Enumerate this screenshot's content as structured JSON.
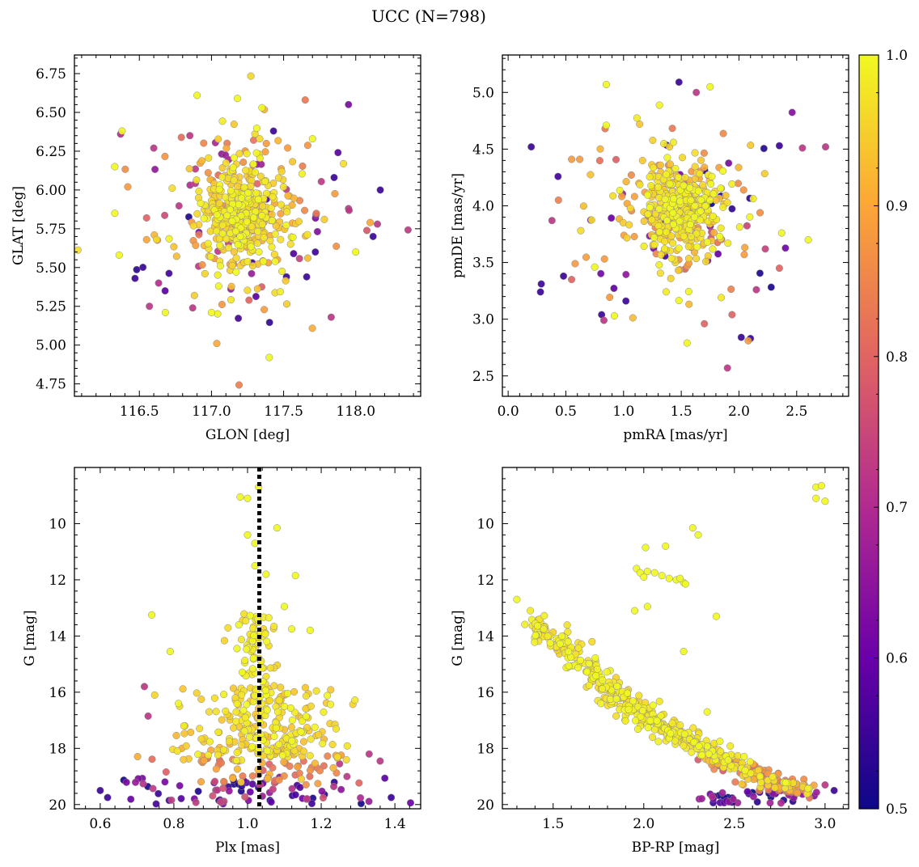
{
  "figure": {
    "title": "UCC (N=798)"
  },
  "colorbar": {
    "range": [
      0.5,
      1.0
    ],
    "ticks": [
      0.5,
      0.6,
      0.7,
      0.8,
      0.9,
      1.0
    ],
    "tick_labels": [
      "0.5",
      "0.6",
      "0.7",
      "0.8",
      "0.9",
      "1.0"
    ],
    "colormap": [
      "#0d0887",
      "#6a00a8",
      "#b12a90",
      "#e16462",
      "#fca636",
      "#f0f921"
    ]
  },
  "chart_data": [
    {
      "id": "sky",
      "type": "scatter",
      "xlabel": "GLON [deg]",
      "ylabel": "GLAT [deg]",
      "xlim": [
        116.05,
        118.45
      ],
      "ylim": [
        4.67,
        6.87
      ],
      "xticks": [
        116.5,
        117.0,
        117.5,
        118.0
      ],
      "xtick_labels": [
        "116.5",
        "117.0",
        "117.5",
        "118.0"
      ],
      "yticks": [
        4.75,
        5.0,
        5.25,
        5.5,
        5.75,
        6.0,
        6.25,
        6.5,
        6.75
      ],
      "ytick_labels": [
        "4.75",
        "5.00",
        "5.25",
        "5.50",
        "5.75",
        "6.00",
        "6.25",
        "6.50",
        "6.75"
      ],
      "inverted_y": false,
      "clusters": [
        {
          "cx": 117.18,
          "cy": 5.85,
          "sx": 0.13,
          "sy": 0.14,
          "n": 330,
          "c": [
            0.93,
            1.0
          ]
        },
        {
          "cx": 117.2,
          "cy": 5.85,
          "sx": 0.28,
          "sy": 0.28,
          "n": 170,
          "c": [
            0.85,
            1.0
          ]
        },
        {
          "cx": 117.2,
          "cy": 5.85,
          "sx": 0.42,
          "sy": 0.38,
          "n": 60,
          "c": [
            0.5,
            0.85
          ]
        }
      ],
      "points": [
        [
          116.9,
          6.61,
          1.0
        ],
        [
          117.18,
          6.59,
          1.0
        ],
        [
          117.35,
          6.53,
          1.0
        ],
        [
          117.65,
          6.58,
          0.83
        ],
        [
          116.37,
          6.36,
          0.7
        ],
        [
          116.38,
          6.38,
          1.0
        ],
        [
          117.43,
          6.38,
          0.55
        ],
        [
          116.33,
          6.15,
          1.0
        ],
        [
          118.17,
          6.0,
          0.55
        ],
        [
          116.42,
          6.02,
          0.88
        ],
        [
          116.33,
          5.85,
          1.0
        ],
        [
          116.36,
          5.58,
          1.0
        ],
        [
          116.47,
          5.43,
          0.55
        ],
        [
          116.57,
          5.25,
          0.72
        ],
        [
          116.68,
          5.21,
          1.0
        ],
        [
          116.87,
          5.24,
          0.72
        ],
        [
          117.0,
          5.21,
          1.0
        ],
        [
          117.4,
          4.92,
          1.0
        ],
        [
          117.83,
          5.18,
          0.72
        ],
        [
          117.26,
          5.29,
          0.8
        ],
        [
          117.72,
          5.6,
          0.55
        ],
        [
          118.12,
          5.7,
          0.55
        ],
        [
          118.15,
          5.78,
          0.72
        ],
        [
          118.1,
          5.79,
          0.9
        ],
        [
          117.95,
          5.88,
          0.72
        ],
        [
          118.0,
          5.6,
          1.0
        ],
        [
          117.85,
          6.08,
          0.55
        ],
        [
          117.7,
          6.33,
          1.0
        ],
        [
          116.6,
          6.27,
          0.72
        ],
        [
          116.55,
          5.82,
          0.8
        ],
        [
          116.55,
          5.68,
          0.9
        ],
        [
          117.66,
          5.44,
          0.55
        ],
        [
          117.52,
          5.44,
          0.55
        ],
        [
          116.85,
          6.35,
          0.72
        ],
        [
          117.05,
          5.38,
          1.0
        ]
      ]
    },
    {
      "id": "pm",
      "type": "scatter",
      "xlabel": "pmRA [mas/yr]",
      "ylabel": "pmDE [mas/yr]",
      "xlim": [
        -0.05,
        2.95
      ],
      "ylim": [
        2.32,
        5.33
      ],
      "xticks": [
        0.0,
        0.5,
        1.0,
        1.5,
        2.0,
        2.5
      ],
      "xtick_labels": [
        "0.0",
        "0.5",
        "1.0",
        "1.5",
        "2.0",
        "2.5"
      ],
      "yticks": [
        2.5,
        3.0,
        3.5,
        4.0,
        4.5,
        5.0
      ],
      "ytick_labels": [
        "2.5",
        "3.0",
        "3.5",
        "4.0",
        "4.5",
        "5.0"
      ],
      "inverted_y": false,
      "clusters": [
        {
          "cx": 1.5,
          "cy": 3.98,
          "sx": 0.16,
          "sy": 0.17,
          "n": 340,
          "c": [
            0.93,
            1.0
          ]
        },
        {
          "cx": 1.5,
          "cy": 3.98,
          "sx": 0.33,
          "sy": 0.33,
          "n": 150,
          "c": [
            0.85,
            1.0
          ]
        },
        {
          "cx": 1.5,
          "cy": 3.95,
          "sx": 0.5,
          "sy": 0.45,
          "n": 50,
          "c": [
            0.5,
            0.85
          ]
        }
      ],
      "points": [
        [
          0.85,
          5.07,
          1.0
        ],
        [
          1.48,
          5.09,
          0.55
        ],
        [
          1.63,
          5.0,
          0.72
        ],
        [
          1.75,
          5.05,
          1.0
        ],
        [
          0.2,
          4.52,
          0.55
        ],
        [
          0.55,
          4.41,
          0.88
        ],
        [
          0.62,
          4.41,
          0.88
        ],
        [
          0.28,
          3.24,
          0.55
        ],
        [
          0.38,
          3.87,
          0.72
        ],
        [
          0.48,
          3.38,
          0.55
        ],
        [
          0.58,
          3.49,
          0.88
        ],
        [
          0.55,
          3.35,
          0.8
        ],
        [
          0.81,
          3.04,
          0.55
        ],
        [
          0.83,
          2.99,
          0.72
        ],
        [
          0.92,
          3.03,
          1.0
        ],
        [
          1.55,
          2.79,
          1.0
        ],
        [
          1.7,
          2.96,
          0.8
        ],
        [
          1.9,
          2.57,
          0.72
        ],
        [
          1.94,
          3.04,
          0.8
        ],
        [
          2.02,
          2.84,
          0.55
        ],
        [
          2.08,
          2.81,
          0.88
        ],
        [
          2.1,
          2.83,
          0.55
        ],
        [
          2.75,
          4.52,
          0.72
        ],
        [
          2.55,
          4.51,
          0.72
        ],
        [
          2.35,
          4.53,
          0.55
        ],
        [
          2.6,
          3.7,
          1.0
        ],
        [
          2.37,
          3.76,
          1.0
        ],
        [
          2.35,
          3.45,
          0.8
        ],
        [
          2.15,
          3.26,
          0.72
        ],
        [
          1.02,
          3.16,
          0.55
        ],
        [
          0.75,
          3.46,
          1.0
        ],
        [
          0.85,
          4.71,
          1.0
        ]
      ]
    },
    {
      "id": "plx",
      "type": "scatter",
      "xlabel": "Plx [mas]",
      "ylabel": "G [mag]",
      "xlim": [
        0.53,
        1.47
      ],
      "ylim": [
        20.15,
        8.0
      ],
      "xticks": [
        0.6,
        0.8,
        1.0,
        1.2,
        1.4
      ],
      "xtick_labels": [
        "0.6",
        "0.8",
        "1.0",
        "1.2",
        "1.4"
      ],
      "yticks": [
        10,
        12,
        14,
        16,
        18,
        20
      ],
      "ytick_labels": [
        "10",
        "12",
        "14",
        "16",
        "18",
        "20"
      ],
      "inverted_y": true,
      "vline": {
        "x": 1.032,
        "style": "dotted",
        "color": "#000000"
      },
      "points": [
        [
          0.98,
          9.05,
          1.0
        ],
        [
          1.0,
          9.1,
          1.0
        ],
        [
          1.03,
          8.7,
          1.0
        ],
        [
          1.0,
          10.4,
          1.0
        ],
        [
          1.02,
          10.7,
          1.0
        ],
        [
          1.08,
          10.15,
          1.0
        ],
        [
          1.02,
          11.5,
          1.0
        ],
        [
          1.05,
          11.8,
          1.0
        ],
        [
          1.13,
          11.85,
          1.0
        ],
        [
          0.74,
          13.25,
          1.0
        ],
        [
          0.79,
          14.55,
          1.0
        ],
        [
          0.72,
          15.8,
          0.72
        ],
        [
          0.73,
          16.85,
          0.72
        ],
        [
          1.1,
          12.95,
          1.0
        ],
        [
          1.12,
          13.75,
          1.0
        ],
        [
          1.17,
          13.8,
          1.0
        ],
        [
          0.6,
          19.5,
          0.55
        ],
        [
          0.62,
          19.75,
          0.55
        ],
        [
          1.39,
          19.75,
          0.55
        ],
        [
          1.33,
          18.2,
          0.72
        ],
        [
          1.36,
          18.45,
          0.72
        ],
        [
          1.25,
          18.55,
          0.72
        ],
        [
          1.27,
          19.0,
          0.72
        ]
      ],
      "bands": [
        {
          "x0": 0.97,
          "x1": 1.07,
          "y0": 13.2,
          "y1": 16.0,
          "n": 70,
          "c": [
            0.95,
            1.0
          ]
        },
        {
          "x0": 0.88,
          "x1": 1.2,
          "y0": 15.8,
          "y1": 18.3,
          "n": 200,
          "c": [
            0.93,
            1.0
          ]
        },
        {
          "x0": 0.8,
          "x1": 1.25,
          "y0": 17.2,
          "y1": 18.5,
          "n": 50,
          "c": [
            0.9,
            1.0
          ]
        },
        {
          "x0": 0.77,
          "x1": 1.32,
          "y0": 18.2,
          "y1": 19.3,
          "n": 60,
          "c": [
            0.78,
            0.95
          ]
        },
        {
          "x0": 0.68,
          "x1": 1.38,
          "y0": 19.0,
          "y1": 20.0,
          "n": 80,
          "c": [
            0.5,
            0.78
          ]
        }
      ]
    },
    {
      "id": "cmd",
      "type": "scatter",
      "xlabel": "BP-RP [mag]",
      "ylabel": "G [mag]",
      "xlim": [
        1.22,
        3.13
      ],
      "ylim": [
        20.15,
        8.0
      ],
      "xticks": [
        1.5,
        2.0,
        2.5,
        3.0
      ],
      "xtick_labels": [
        "1.5",
        "2.0",
        "2.5",
        "3.0"
      ],
      "yticks": [
        10,
        12,
        14,
        16,
        18,
        20
      ],
      "ytick_labels": [
        "10",
        "12",
        "14",
        "16",
        "18",
        "20"
      ],
      "inverted_y": true,
      "sequence": [
        [
          1.4,
          13.5
        ],
        [
          1.5,
          14.0
        ],
        [
          1.6,
          14.6
        ],
        [
          1.7,
          15.3
        ],
        [
          1.8,
          15.9
        ],
        [
          1.9,
          16.4
        ],
        [
          2.0,
          16.8
        ],
        [
          2.1,
          17.2
        ],
        [
          2.2,
          17.5
        ],
        [
          2.3,
          17.9
        ],
        [
          2.4,
          18.3
        ],
        [
          2.5,
          18.6
        ],
        [
          2.6,
          18.9
        ],
        [
          2.7,
          19.2
        ],
        [
          2.8,
          19.4
        ],
        [
          2.9,
          19.6
        ]
      ],
      "points": [
        [
          1.3,
          12.7,
          1.0
        ],
        [
          2.95,
          8.7,
          1.0
        ],
        [
          2.98,
          8.65,
          1.0
        ],
        [
          3.0,
          9.2,
          1.0
        ],
        [
          2.95,
          9.1,
          1.0
        ],
        [
          2.27,
          10.15,
          1.0
        ],
        [
          2.3,
          10.4,
          1.0
        ],
        [
          2.01,
          10.85,
          1.0
        ],
        [
          2.12,
          10.8,
          1.0
        ],
        [
          1.96,
          11.6,
          1.0
        ],
        [
          1.98,
          11.75,
          1.0
        ],
        [
          2.02,
          11.7,
          1.0
        ],
        [
          2.06,
          11.75,
          1.0
        ],
        [
          2.1,
          11.85,
          1.0
        ],
        [
          2.14,
          11.95,
          1.0
        ],
        [
          2.18,
          12.0,
          1.0
        ],
        [
          2.22,
          12.1,
          1.0
        ],
        [
          2.2,
          11.95,
          1.0
        ],
        [
          2.0,
          11.9,
          1.0
        ],
        [
          2.23,
          12.15,
          1.0
        ],
        [
          1.95,
          13.1,
          1.0
        ],
        [
          2.02,
          12.95,
          1.0
        ],
        [
          2.4,
          13.3,
          1.0
        ],
        [
          2.22,
          14.55,
          1.0
        ],
        [
          2.35,
          16.7,
          1.0
        ],
        [
          2.42,
          17.75,
          1.0
        ],
        [
          3.05,
          19.5,
          0.55
        ],
        [
          3.0,
          19.3,
          0.72
        ]
      ]
    }
  ]
}
